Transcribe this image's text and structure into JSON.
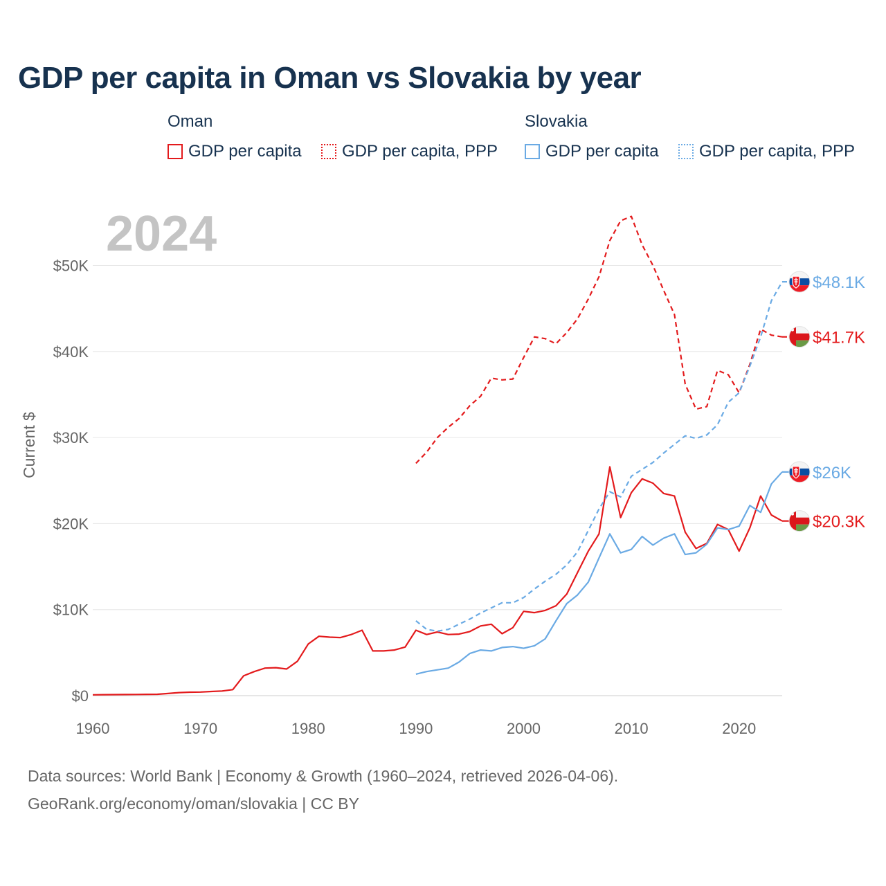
{
  "chart_data": {
    "type": "line",
    "title": "GDP per capita in Oman vs Slovakia by year",
    "year_watermark": "2024",
    "ylabel": "Current $",
    "xlabel": "",
    "xlim": [
      1960,
      2024
    ],
    "ylim": [
      0,
      55000
    ],
    "x_ticks": [
      1960,
      1970,
      1980,
      1990,
      2000,
      2010,
      2020
    ],
    "y_ticks": [
      {
        "value": 0,
        "label": "$0"
      },
      {
        "value": 10000,
        "label": "$10K"
      },
      {
        "value": 20000,
        "label": "$20K"
      },
      {
        "value": 30000,
        "label": "$30K"
      },
      {
        "value": 40000,
        "label": "$40K"
      },
      {
        "value": 50000,
        "label": "$50K"
      }
    ],
    "legend": [
      {
        "group": "Oman",
        "items": [
          "GDP per capita",
          "GDP per capita, PPP"
        ]
      },
      {
        "group": "Slovakia",
        "items": [
          "GDP per capita",
          "GDP per capita, PPP"
        ]
      }
    ],
    "series": [
      {
        "name": "Oman GDP per capita",
        "country": "Oman",
        "color": "#e31a1c",
        "dash": "solid",
        "end_label": "$20.3K",
        "flag": "oman",
        "x": [
          1960,
          1961,
          1962,
          1963,
          1964,
          1965,
          1966,
          1967,
          1968,
          1969,
          1970,
          1971,
          1972,
          1973,
          1974,
          1975,
          1976,
          1977,
          1978,
          1979,
          1980,
          1981,
          1982,
          1983,
          1984,
          1985,
          1986,
          1987,
          1988,
          1989,
          1990,
          1991,
          1992,
          1993,
          1994,
          1995,
          1996,
          1997,
          1998,
          1999,
          2000,
          2001,
          2002,
          2003,
          2004,
          2005,
          2006,
          2007,
          2008,
          2009,
          2010,
          2011,
          2012,
          2013,
          2014,
          2015,
          2016,
          2017,
          2018,
          2019,
          2020,
          2021,
          2022,
          2023,
          2024
        ],
        "values": [
          100,
          110,
          120,
          130,
          140,
          150,
          160,
          250,
          350,
          400,
          420,
          480,
          540,
          700,
          2300,
          2800,
          3200,
          3250,
          3100,
          4000,
          6000,
          6900,
          6800,
          6750,
          7100,
          7600,
          5200,
          5200,
          5300,
          5650,
          7600,
          7100,
          7400,
          7100,
          7150,
          7450,
          8100,
          8300,
          7200,
          7900,
          9800,
          9650,
          9900,
          10450,
          11800,
          14300,
          16800,
          18800,
          26600,
          20700,
          23600,
          25200,
          24700,
          23500,
          23200,
          19000,
          17100,
          17700,
          19900,
          19300,
          16800,
          19500,
          23200,
          21000,
          20300
        ]
      },
      {
        "name": "Oman GDP per capita, PPP",
        "country": "Oman",
        "color": "#e31a1c",
        "dash": "dashed",
        "end_label": "$41.7K",
        "flag": "oman",
        "x": [
          1990,
          1991,
          1992,
          1993,
          1994,
          1995,
          1996,
          1997,
          1998,
          1999,
          2000,
          2001,
          2002,
          2003,
          2004,
          2005,
          2006,
          2007,
          2008,
          2009,
          2010,
          2011,
          2012,
          2013,
          2014,
          2015,
          2016,
          2017,
          2018,
          2019,
          2020,
          2021,
          2022,
          2023,
          2024
        ],
        "values": [
          27000,
          28300,
          30000,
          31200,
          32200,
          33700,
          34800,
          36900,
          36700,
          36800,
          39300,
          41700,
          41500,
          40900,
          42200,
          43800,
          46100,
          48700,
          52900,
          55200,
          55700,
          52400,
          50000,
          47100,
          44300,
          36200,
          33300,
          33600,
          37800,
          37300,
          35200,
          38500,
          42600,
          41900,
          41700
        ]
      },
      {
        "name": "Slovakia GDP per capita",
        "country": "Slovakia",
        "color": "#6aaae4",
        "dash": "solid",
        "end_label": "$26K",
        "flag": "slovakia",
        "x": [
          1990,
          1991,
          1992,
          1993,
          1994,
          1995,
          1996,
          1997,
          1998,
          1999,
          2000,
          2001,
          2002,
          2003,
          2004,
          2005,
          2006,
          2007,
          2008,
          2009,
          2010,
          2011,
          2012,
          2013,
          2014,
          2015,
          2016,
          2017,
          2018,
          2019,
          2020,
          2021,
          2022,
          2023,
          2024
        ],
        "values": [
          2500,
          2800,
          3000,
          3200,
          3900,
          4900,
          5300,
          5200,
          5600,
          5700,
          5500,
          5800,
          6600,
          8700,
          10700,
          11700,
          13200,
          16000,
          18800,
          16600,
          17000,
          18500,
          17500,
          18300,
          18800,
          16400,
          16600,
          17600,
          19500,
          19300,
          19700,
          22100,
          21300,
          24600,
          26000
        ]
      },
      {
        "name": "Slovakia GDP per capita, PPP",
        "country": "Slovakia",
        "color": "#6aaae4",
        "dash": "dashed",
        "end_label": "$48.1K",
        "flag": "slovakia",
        "x": [
          1990,
          1991,
          1992,
          1993,
          1994,
          1995,
          1996,
          1997,
          1998,
          1999,
          2000,
          2001,
          2002,
          2003,
          2004,
          2005,
          2006,
          2007,
          2008,
          2009,
          2010,
          2011,
          2012,
          2013,
          2014,
          2015,
          2016,
          2017,
          2018,
          2019,
          2020,
          2021,
          2022,
          2023,
          2024
        ],
        "values": [
          8700,
          7700,
          7500,
          7700,
          8300,
          8900,
          9600,
          10200,
          10800,
          10800,
          11400,
          12400,
          13300,
          14100,
          15200,
          16700,
          19200,
          21700,
          23700,
          23100,
          25500,
          26300,
          27100,
          28200,
          29200,
          30200,
          29900,
          30300,
          31500,
          34100,
          35200,
          38300,
          41700,
          45900,
          48100
        ]
      }
    ]
  },
  "footer": {
    "line1": "Data sources: World Bank | Economy & Growth (1960–2024, retrieved 2026-04-06).",
    "line2": "GeoRank.org/economy/oman/slovakia | CC BY"
  }
}
